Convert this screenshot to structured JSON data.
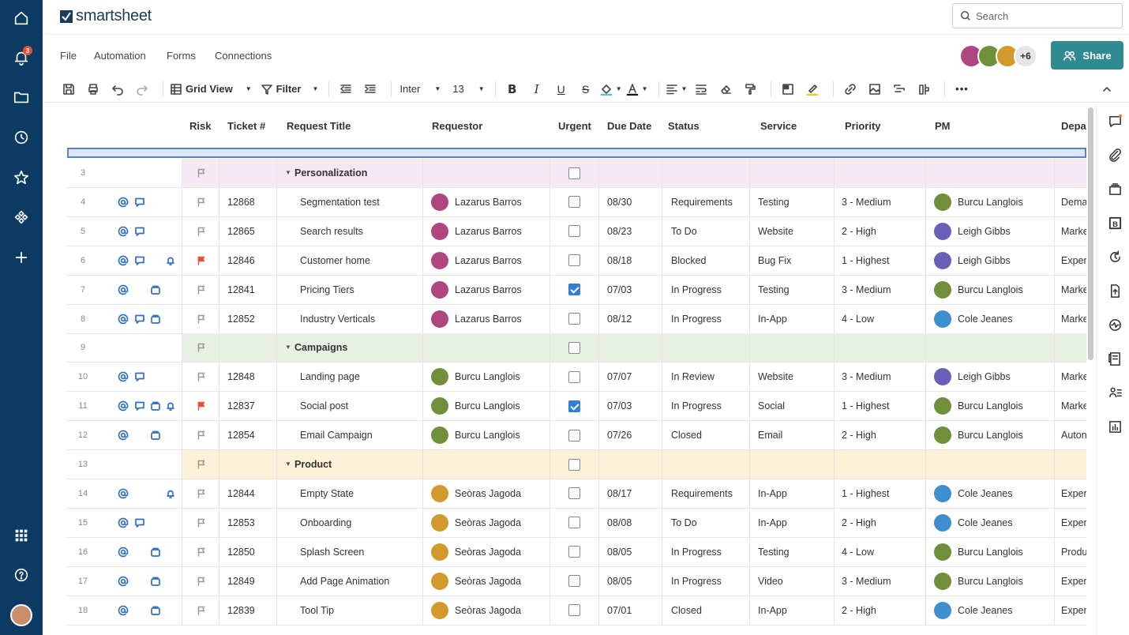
{
  "app": {
    "name": "smartsheet"
  },
  "leftnav": {
    "notification_count": "3"
  },
  "search": {
    "placeholder": "Search"
  },
  "menus": [
    "File",
    "Automation",
    "Forms",
    "Connections"
  ],
  "collaborators": {
    "more": "+6"
  },
  "share": {
    "label": "Share"
  },
  "toolbar": {
    "view": "Grid View",
    "filter": "Filter",
    "font": "Inter",
    "size": "13"
  },
  "columns": [
    "Risk",
    "Ticket #",
    "Request Title",
    "Requestor",
    "Urgent",
    "Due Date",
    "Status",
    "Service",
    "Priority",
    "PM",
    "Depa"
  ],
  "rows": [
    {
      "num": "3",
      "group": true,
      "title": "Personalization",
      "tint": "#f7e9f3",
      "urgent": false
    },
    {
      "num": "4",
      "icons": [
        "at",
        "chat"
      ],
      "flag": "grey",
      "ticket": "12868",
      "title": "Segmentation test",
      "requestor": "Lazarus Barros",
      "urgent": false,
      "due": "08/30",
      "status": "Requirements",
      "service": "Testing",
      "priority": "3 - Medium",
      "pm": "Burcu Langlois",
      "dept": "Dema"
    },
    {
      "num": "5",
      "icons": [
        "at",
        "chat"
      ],
      "flag": "grey",
      "ticket": "12865",
      "title": "Search results",
      "requestor": "Lazarus Barros",
      "urgent": false,
      "due": "08/23",
      "status": "To Do",
      "service": "Website",
      "priority": "2 - High",
      "pm": "Leigh Gibbs",
      "dept": "Marke"
    },
    {
      "num": "6",
      "icons": [
        "at",
        "chat",
        "",
        "bell"
      ],
      "flag": "red",
      "ticket": "12846",
      "title": "Customer home",
      "requestor": "Lazarus Barros",
      "urgent": false,
      "due": "08/18",
      "status": "Blocked",
      "service": "Bug Fix",
      "priority": "1 - Highest",
      "pm": "Leigh Gibbs",
      "dept": "Exper"
    },
    {
      "num": "7",
      "icons": [
        "at",
        "",
        "box"
      ],
      "flag": "grey",
      "ticket": "12841",
      "title": "Pricing Tiers",
      "requestor": "Lazarus Barros",
      "urgent": true,
      "due": "07/03",
      "status": "In Progress",
      "service": "Testing",
      "priority": "3 - Medium",
      "pm": "Burcu Langlois",
      "dept": "Marke"
    },
    {
      "num": "8",
      "icons": [
        "at",
        "chat",
        "box"
      ],
      "flag": "grey",
      "ticket": "12852",
      "title": "Industry Verticals",
      "requestor": "Lazarus Barros",
      "urgent": false,
      "due": "08/12",
      "status": "In Progress",
      "service": "In-App",
      "priority": "4 - Low",
      "pm": "Cole Jeanes",
      "dept": "Marke"
    },
    {
      "num": "9",
      "group": true,
      "title": "Campaigns",
      "tint": "#e8f0e4",
      "urgent": false
    },
    {
      "num": "10",
      "icons": [
        "at",
        "chat"
      ],
      "flag": "grey",
      "ticket": "12848",
      "title": "Landing page",
      "requestor": "Burcu Langlois",
      "urgent": false,
      "due": "07/07",
      "status": "In Review",
      "service": "Website",
      "priority": "3 - Medium",
      "pm": "Leigh Gibbs",
      "dept": "Marke"
    },
    {
      "num": "11",
      "icons": [
        "at",
        "chat",
        "box",
        "bell"
      ],
      "flag": "red",
      "ticket": "12837",
      "title": "Social post",
      "requestor": "Burcu Langlois",
      "urgent": true,
      "due": "07/03",
      "status": "In Progress",
      "service": "Social",
      "priority": "1 - Highest",
      "pm": "Burcu Langlois",
      "dept": "Marke"
    },
    {
      "num": "12",
      "icons": [
        "at",
        "",
        "box"
      ],
      "flag": "grey",
      "ticket": "12854",
      "title": "Email Campaign",
      "requestor": "Burcu Langlois",
      "urgent": false,
      "due": "07/26",
      "status": "Closed",
      "service": "Email",
      "priority": "2 - High",
      "pm": "Burcu Langlois",
      "dept": "Auton"
    },
    {
      "num": "13",
      "group": true,
      "title": "Product",
      "tint": "#fdf1d8",
      "urgent": false
    },
    {
      "num": "14",
      "icons": [
        "at",
        "",
        "",
        "bell"
      ],
      "flag": "grey",
      "ticket": "12844",
      "title": "Empty State",
      "requestor": "Seòras Jagoda",
      "urgent": false,
      "due": "08/17",
      "status": "Requirements",
      "service": "In-App",
      "priority": "1 - Highest",
      "pm": "Cole Jeanes",
      "dept": "Exper"
    },
    {
      "num": "15",
      "icons": [
        "at",
        "chat"
      ],
      "flag": "grey",
      "ticket": "12853",
      "title": "Onboarding",
      "requestor": "Seòras Jagoda",
      "urgent": false,
      "due": "08/08",
      "status": "To Do",
      "service": "In-App",
      "priority": "2 - High",
      "pm": "Cole Jeanes",
      "dept": "Exper"
    },
    {
      "num": "16",
      "icons": [
        "at",
        "",
        "box"
      ],
      "flag": "grey",
      "ticket": "12850",
      "title": "Splash Screen",
      "requestor": "Seòras Jagoda",
      "urgent": false,
      "due": "08/05",
      "status": "In Progress",
      "service": "Testing",
      "priority": "4 - Low",
      "pm": "Burcu Langlois",
      "dept": "Produ"
    },
    {
      "num": "17",
      "icons": [
        "at",
        "",
        "box"
      ],
      "flag": "grey",
      "ticket": "12849",
      "title": "Add Page Animation",
      "requestor": "Seòras Jagoda",
      "urgent": false,
      "due": "08/05",
      "status": "In Progress",
      "service": "Video",
      "priority": "3 - Medium",
      "pm": "Burcu Langlois",
      "dept": "Exper"
    },
    {
      "num": "18",
      "icons": [
        "at",
        "",
        "box"
      ],
      "flag": "grey",
      "ticket": "12839",
      "title": "Tool Tip",
      "requestor": "Seòras Jagoda",
      "urgent": false,
      "due": "07/01",
      "status": "Closed",
      "service": "In-App",
      "priority": "2 - High",
      "pm": "Cole Jeanes",
      "dept": "Exper"
    }
  ],
  "people_colors": {
    "Lazarus Barros": "#b0467f",
    "Burcu Langlois": "#6f8f3a",
    "Seòras Jagoda": "#d29a2c",
    "Leigh Gibbs": "#6a5fb8",
    "Cole Jeanes": "#3d8fcf"
  }
}
